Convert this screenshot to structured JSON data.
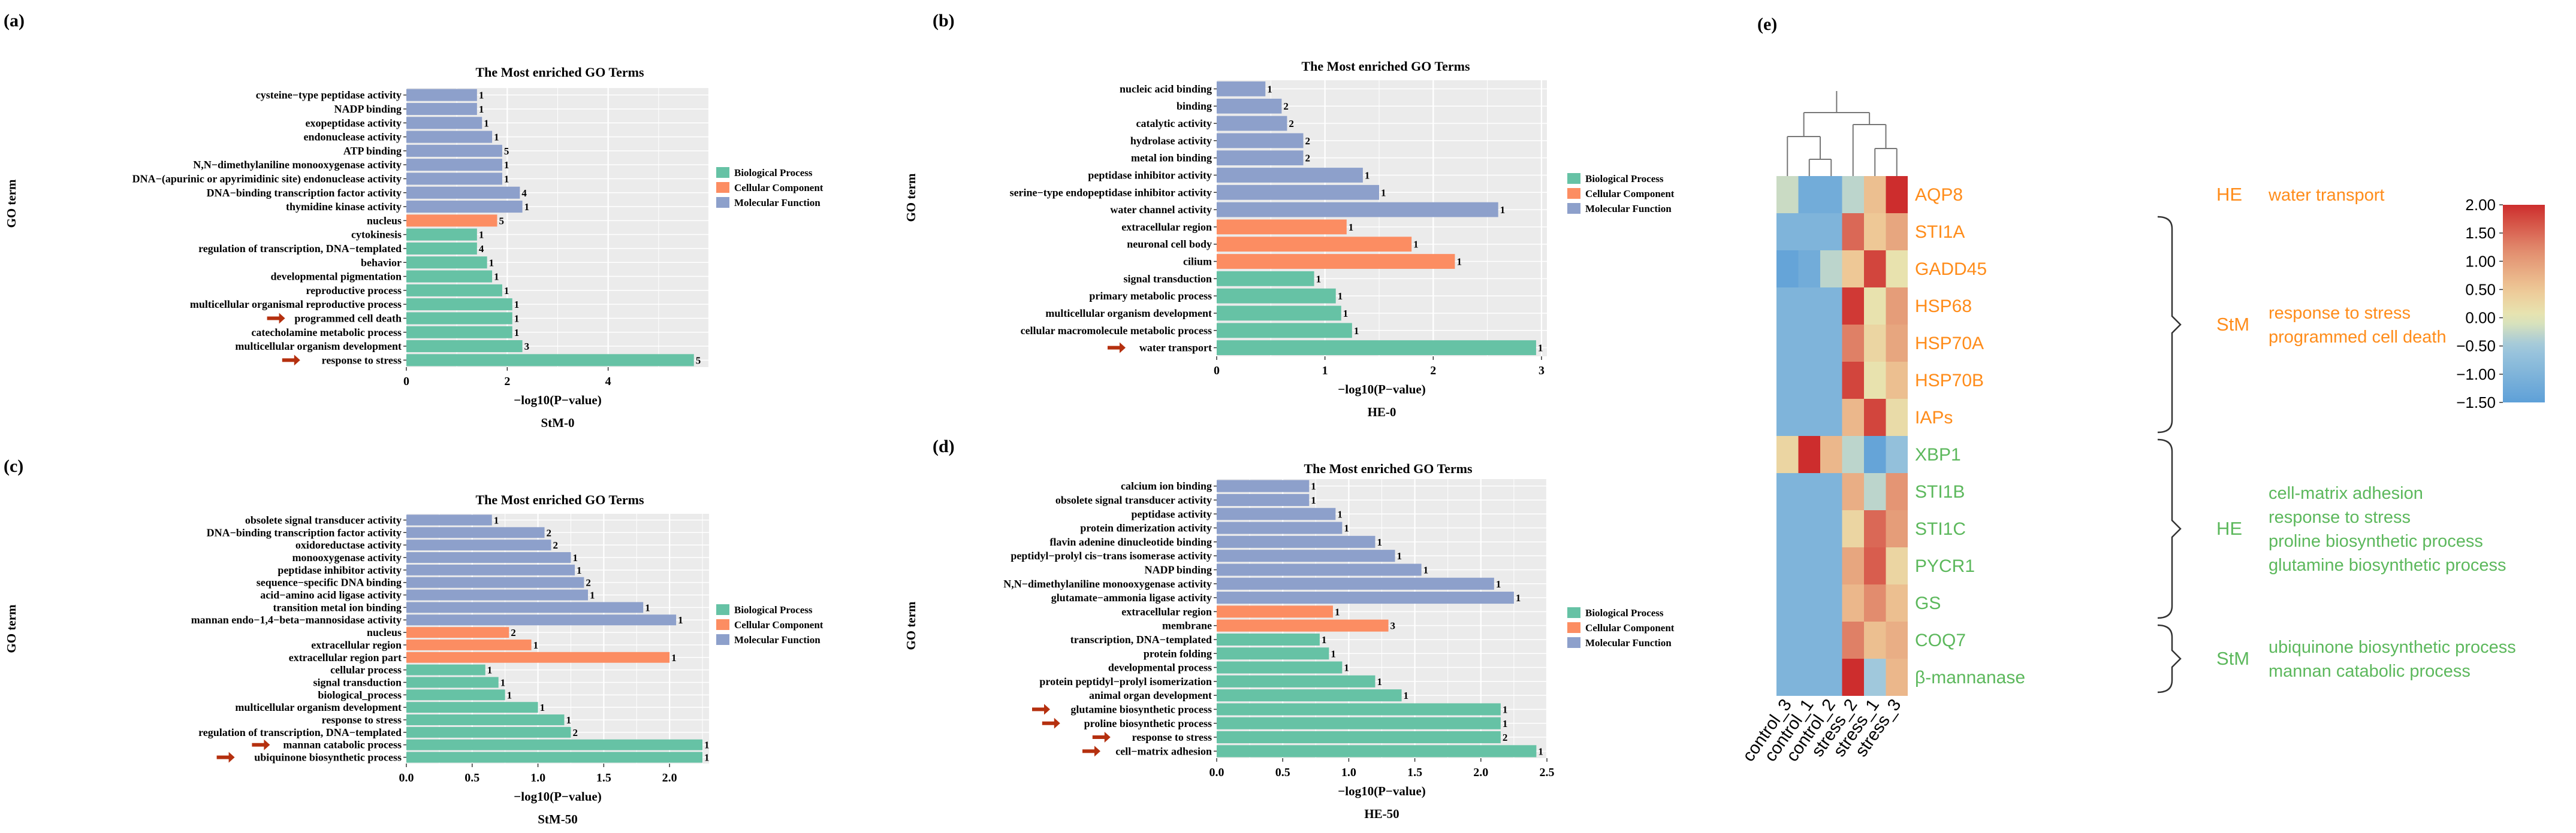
{
  "colors": {
    "bp": "#66c2a5",
    "cc": "#fc8d62",
    "mf": "#8da0cb",
    "panel_bg": "#ebebeb",
    "grid": "#ffffff",
    "arrow": "#b5300f",
    "he_text": "#ff8c1a",
    "stm_green": "#5cb85c",
    "bracket": "#333333",
    "dendro": "#777777"
  },
  "legend": {
    "items": [
      {
        "label": "Biological Process",
        "color_key": "bp"
      },
      {
        "label": "Cellular Component",
        "color_key": "cc"
      },
      {
        "label": "Molecular Function",
        "color_key": "mf"
      }
    ]
  },
  "chart_data": [
    {
      "panel": "(a)",
      "type": "bar",
      "orientation": "horizontal",
      "title": "The Most enriched GO Terms",
      "xlabel": "−log10(P−value)",
      "ylabel": "GO term",
      "subtitle": "StM-0",
      "xlim": [
        0,
        6
      ],
      "xticks": [
        0,
        2,
        4
      ],
      "bars": [
        {
          "term": "cysteine−type peptidase activity",
          "value": 1.4,
          "count": "1",
          "category": "mf",
          "arrow": false
        },
        {
          "term": "NADP binding",
          "value": 1.4,
          "count": "1",
          "category": "mf",
          "arrow": false
        },
        {
          "term": "exopeptidase activity",
          "value": 1.5,
          "count": "1",
          "category": "mf",
          "arrow": false
        },
        {
          "term": "endonuclease activity",
          "value": 1.7,
          "count": "1",
          "category": "mf",
          "arrow": false
        },
        {
          "term": "ATP binding",
          "value": 1.9,
          "count": "5",
          "category": "mf",
          "arrow": false
        },
        {
          "term": "N,N−dimethylaniline monooxygenase activity",
          "value": 1.9,
          "count": "1",
          "category": "mf",
          "arrow": false
        },
        {
          "term": "DNA−(apurinic or apyrimidinic site) endonuclease activity",
          "value": 1.9,
          "count": "1",
          "category": "mf",
          "arrow": false
        },
        {
          "term": "DNA−binding transcription factor activity",
          "value": 2.25,
          "count": "4",
          "category": "mf",
          "arrow": false
        },
        {
          "term": "thymidine kinase activity",
          "value": 2.3,
          "count": "1",
          "category": "mf",
          "arrow": false
        },
        {
          "term": "nucleus",
          "value": 1.8,
          "count": "5",
          "category": "cc",
          "arrow": false
        },
        {
          "term": "cytokinesis",
          "value": 1.4,
          "count": "1",
          "category": "bp",
          "arrow": false
        },
        {
          "term": "regulation of transcription, DNA−templated",
          "value": 1.4,
          "count": "4",
          "category": "bp",
          "arrow": false
        },
        {
          "term": "behavior",
          "value": 1.6,
          "count": "1",
          "category": "bp",
          "arrow": false
        },
        {
          "term": "developmental pigmentation",
          "value": 1.7,
          "count": "1",
          "category": "bp",
          "arrow": false
        },
        {
          "term": "reproductive process",
          "value": 1.9,
          "count": "1",
          "category": "bp",
          "arrow": false
        },
        {
          "term": "multicellular organismal reproductive process",
          "value": 2.1,
          "count": "1",
          "category": "bp",
          "arrow": false
        },
        {
          "term": "programmed cell death",
          "value": 2.1,
          "count": "1",
          "category": "bp",
          "arrow": true
        },
        {
          "term": "catecholamine metabolic process",
          "value": 2.1,
          "count": "1",
          "category": "bp",
          "arrow": false
        },
        {
          "term": "multicellular organism development",
          "value": 2.3,
          "count": "3",
          "category": "bp",
          "arrow": false
        },
        {
          "term": "response to stress",
          "value": 5.7,
          "count": "5",
          "category": "bp",
          "arrow": true
        }
      ]
    },
    {
      "panel": "(b)",
      "type": "bar",
      "orientation": "horizontal",
      "title": "The Most enriched GO Terms",
      "xlabel": "−log10(P−value)",
      "ylabel": "GO term",
      "subtitle": "HE-0",
      "xlim": [
        0,
        3.05
      ],
      "xticks": [
        0,
        1,
        2,
        3
      ],
      "bars": [
        {
          "term": "nucleic acid binding",
          "value": 0.45,
          "count": "1",
          "category": "mf",
          "arrow": false
        },
        {
          "term": "binding",
          "value": 0.6,
          "count": "2",
          "category": "mf",
          "arrow": false
        },
        {
          "term": "catalytic activity",
          "value": 0.65,
          "count": "2",
          "category": "mf",
          "arrow": false
        },
        {
          "term": "hydrolase activity",
          "value": 0.8,
          "count": "2",
          "category": "mf",
          "arrow": false
        },
        {
          "term": "metal ion binding",
          "value": 0.8,
          "count": "2",
          "category": "mf",
          "arrow": false
        },
        {
          "term": "peptidase inhibitor activity",
          "value": 1.35,
          "count": "1",
          "category": "mf",
          "arrow": false
        },
        {
          "term": "serine−type endopeptidase inhibitor activity",
          "value": 1.5,
          "count": "1",
          "category": "mf",
          "arrow": false
        },
        {
          "term": "water channel activity",
          "value": 2.6,
          "count": "1",
          "category": "mf",
          "arrow": false
        },
        {
          "term": "extracellular region",
          "value": 1.2,
          "count": "1",
          "category": "cc",
          "arrow": false
        },
        {
          "term": "neuronal cell body",
          "value": 1.8,
          "count": "1",
          "category": "cc",
          "arrow": false
        },
        {
          "term": "cilium",
          "value": 2.2,
          "count": "1",
          "category": "cc",
          "arrow": false
        },
        {
          "term": "signal transduction",
          "value": 0.9,
          "count": "1",
          "category": "bp",
          "arrow": false
        },
        {
          "term": "primary metabolic process",
          "value": 1.1,
          "count": "1",
          "category": "bp",
          "arrow": false
        },
        {
          "term": "multicellular organism development",
          "value": 1.15,
          "count": "1",
          "category": "bp",
          "arrow": false
        },
        {
          "term": "cellular macromolecule metabolic process",
          "value": 1.25,
          "count": "1",
          "category": "bp",
          "arrow": false
        },
        {
          "term": "water transport",
          "value": 2.95,
          "count": "1",
          "category": "bp",
          "arrow": true
        }
      ]
    },
    {
      "panel": "(c)",
      "type": "bar",
      "orientation": "horizontal",
      "title": "The Most enriched GO Terms",
      "xlabel": "−log10(P−value)",
      "ylabel": "GO term",
      "subtitle": "StM-50",
      "xlim": [
        0,
        2.3
      ],
      "xticks": [
        0.0,
        0.5,
        1.0,
        1.5,
        2.0
      ],
      "tick_labels": [
        "0.0",
        "0.5",
        "1.0",
        "1.5",
        "2.0"
      ],
      "bars": [
        {
          "term": "obsolete signal transducer activity",
          "value": 0.65,
          "count": "1",
          "category": "mf",
          "arrow": false
        },
        {
          "term": "DNA−binding transcription factor activity",
          "value": 1.05,
          "count": "2",
          "category": "mf",
          "arrow": false
        },
        {
          "term": "oxidoreductase activity",
          "value": 1.1,
          "count": "2",
          "category": "mf",
          "arrow": false
        },
        {
          "term": "monooxygenase activity",
          "value": 1.25,
          "count": "1",
          "category": "mf",
          "arrow": false
        },
        {
          "term": "peptidase inhibitor activity",
          "value": 1.28,
          "count": "1",
          "category": "mf",
          "arrow": false
        },
        {
          "term": "sequence−specific DNA binding",
          "value": 1.35,
          "count": "2",
          "category": "mf",
          "arrow": false
        },
        {
          "term": "acid−amino acid ligase activity",
          "value": 1.38,
          "count": "1",
          "category": "mf",
          "arrow": false
        },
        {
          "term": "transition metal ion binding",
          "value": 1.8,
          "count": "1",
          "category": "mf",
          "arrow": false
        },
        {
          "term": "mannan endo−1,4−beta−mannosidase activity",
          "value": 2.05,
          "count": "1",
          "category": "mf",
          "arrow": false
        },
        {
          "term": "nucleus",
          "value": 0.78,
          "count": "2",
          "category": "cc",
          "arrow": false
        },
        {
          "term": "extracellular region",
          "value": 0.95,
          "count": "1",
          "category": "cc",
          "arrow": false
        },
        {
          "term": "extracellular region part",
          "value": 2.0,
          "count": "1",
          "category": "cc",
          "arrow": false
        },
        {
          "term": "cellular process",
          "value": 0.6,
          "count": "1",
          "category": "bp",
          "arrow": false
        },
        {
          "term": "signal transduction",
          "value": 0.7,
          "count": "1",
          "category": "bp",
          "arrow": false
        },
        {
          "term": "biological_process",
          "value": 0.75,
          "count": "1",
          "category": "bp",
          "arrow": false
        },
        {
          "term": "multicellular organism development",
          "value": 1.0,
          "count": "1",
          "category": "bp",
          "arrow": false
        },
        {
          "term": "response to stress",
          "value": 1.2,
          "count": "1",
          "category": "bp",
          "arrow": false
        },
        {
          "term": "regulation of transcription, DNA−templated",
          "value": 1.25,
          "count": "2",
          "category": "bp",
          "arrow": false
        },
        {
          "term": "mannan catabolic process",
          "value": 2.25,
          "count": "1",
          "category": "bp",
          "arrow": true
        },
        {
          "term": "ubiquinone biosynthetic process",
          "value": 2.25,
          "count": "1",
          "category": "bp",
          "arrow": true
        }
      ]
    },
    {
      "panel": "(d)",
      "type": "bar",
      "orientation": "horizontal",
      "title": "The Most enriched GO Terms",
      "xlabel": "−log10(P−value)",
      "ylabel": "GO term",
      "subtitle": "HE-50",
      "xlim": [
        0,
        2.5
      ],
      "xticks": [
        0.0,
        0.5,
        1.0,
        1.5,
        2.0,
        2.5
      ],
      "tick_labels": [
        "0.0",
        "0.5",
        "1.0",
        "1.5",
        "2.0",
        "2.5"
      ],
      "bars": [
        {
          "term": "calcium ion binding",
          "value": 0.7,
          "count": "1",
          "category": "mf",
          "arrow": false
        },
        {
          "term": "obsolete signal transducer activity",
          "value": 0.7,
          "count": "1",
          "category": "mf",
          "arrow": false
        },
        {
          "term": "peptidase activity",
          "value": 0.9,
          "count": "1",
          "category": "mf",
          "arrow": false
        },
        {
          "term": "protein dimerization activity",
          "value": 0.95,
          "count": "1",
          "category": "mf",
          "arrow": false
        },
        {
          "term": "flavin adenine dinucleotide binding",
          "value": 1.2,
          "count": "1",
          "category": "mf",
          "arrow": false
        },
        {
          "term": "peptidyl−prolyl cis−trans isomerase activity",
          "value": 1.35,
          "count": "1",
          "category": "mf",
          "arrow": false
        },
        {
          "term": "NADP binding",
          "value": 1.55,
          "count": "1",
          "category": "mf",
          "arrow": false
        },
        {
          "term": "N,N−dimethylaniline monooxygenase activity",
          "value": 2.1,
          "count": "1",
          "category": "mf",
          "arrow": false
        },
        {
          "term": "glutamate−ammonia ligase activity",
          "value": 2.25,
          "count": "1",
          "category": "mf",
          "arrow": false
        },
        {
          "term": "extracellular region",
          "value": 0.88,
          "count": "1",
          "category": "cc",
          "arrow": false
        },
        {
          "term": "membrane",
          "value": 1.3,
          "count": "3",
          "category": "cc",
          "arrow": false
        },
        {
          "term": "transcription, DNA−templated",
          "value": 0.78,
          "count": "1",
          "category": "bp",
          "arrow": false
        },
        {
          "term": "protein folding",
          "value": 0.85,
          "count": "1",
          "category": "bp",
          "arrow": false
        },
        {
          "term": "developmental process",
          "value": 0.95,
          "count": "1",
          "category": "bp",
          "arrow": false
        },
        {
          "term": "protein peptidyl−prolyl isomerization",
          "value": 1.2,
          "count": "1",
          "category": "bp",
          "arrow": false
        },
        {
          "term": "animal organ development",
          "value": 1.4,
          "count": "1",
          "category": "bp",
          "arrow": false
        },
        {
          "term": "glutamine biosynthetic process",
          "value": 2.15,
          "count": "1",
          "category": "bp",
          "arrow": true
        },
        {
          "term": "proline biosynthetic process",
          "value": 2.15,
          "count": "1",
          "category": "bp",
          "arrow": true
        },
        {
          "term": "response to stress",
          "value": 2.15,
          "count": "2",
          "category": "bp",
          "arrow": true
        },
        {
          "term": "cell−matrix adhesion",
          "value": 2.42,
          "count": "1",
          "category": "bp",
          "arrow": true
        }
      ]
    },
    {
      "panel": "(e)",
      "type": "heatmap",
      "columns": [
        "control_3",
        "control_1",
        "control_2",
        "stress_2",
        "stress_1",
        "stress_3"
      ],
      "rows": [
        "AQP8",
        "STI1A",
        "GADD45",
        "HSP68",
        "HSP70A",
        "HSP70B",
        "IAPs",
        "XBP1",
        "STI1B",
        "STI1C",
        "PYCR1",
        "GS",
        "COQ7",
        "β-mannanase"
      ],
      "row_colors": [
        "he",
        "he",
        "he",
        "he",
        "he",
        "he",
        "he",
        "stm",
        "stm",
        "stm",
        "stm",
        "stm",
        "stm",
        "stm"
      ],
      "values": [
        [
          -0.2,
          -1.2,
          -1.2,
          -0.3,
          0.6,
          2.0
        ],
        [
          -1.0,
          -1.0,
          -1.0,
          1.5,
          0.5,
          0.9
        ],
        [
          -1.4,
          -1.2,
          -0.3,
          0.5,
          1.8,
          0.1
        ],
        [
          -1.0,
          -1.0,
          -1.0,
          1.9,
          0.1,
          1.0
        ],
        [
          -1.0,
          -1.0,
          -1.0,
          1.3,
          0.3,
          0.9
        ],
        [
          -1.0,
          -1.0,
          -1.0,
          1.8,
          0.1,
          0.6
        ],
        [
          -1.0,
          -1.0,
          -1.0,
          0.7,
          1.8,
          0.2
        ],
        [
          0.3,
          2.0,
          0.7,
          -0.3,
          -1.4,
          -0.7
        ],
        [
          -1.0,
          -1.0,
          -1.0,
          0.8,
          -0.3,
          1.1
        ],
        [
          -1.0,
          -1.0,
          -1.0,
          0.3,
          1.5,
          1.0
        ],
        [
          -1.0,
          -1.0,
          -1.0,
          0.9,
          1.6,
          0.3
        ],
        [
          -1.0,
          -1.0,
          -1.0,
          0.7,
          1.2,
          0.6
        ],
        [
          -1.0,
          -1.0,
          -1.0,
          1.3,
          0.6,
          0.8
        ],
        [
          -1.0,
          -1.0,
          -1.0,
          2.0,
          -0.5,
          0.7
        ]
      ],
      "color_range": [
        -1.5,
        2.0
      ],
      "colorbar_ticks": [
        "2.00",
        "1.50",
        "1.00",
        "0.50",
        "0.00",
        "−0.50",
        "−1.00",
        "−1.50"
      ],
      "colorbar_values": [
        2.0,
        1.5,
        1.0,
        0.5,
        0.0,
        -0.5,
        -1.0,
        -1.5
      ],
      "annotations": [
        {
          "group": "HE",
          "lines": [
            "water transport"
          ],
          "rows": [
            0,
            0
          ],
          "color_key": "he_text",
          "bracket": false
        },
        {
          "group": "StM",
          "lines": [
            "response to stress",
            "programmed cell death"
          ],
          "rows": [
            1,
            6
          ],
          "color_key": "he_text",
          "bracket": true
        },
        {
          "group": "HE",
          "lines": [
            "cell-matrix adhesion",
            "response to stress",
            "proline biosynthetic process",
            "glutamine biosynthetic process"
          ],
          "rows": [
            7,
            11
          ],
          "color_key": "stm_green",
          "bracket": true
        },
        {
          "group": "StM",
          "lines": [
            "ubiquinone biosynthetic process",
            "mannan catabolic process"
          ],
          "rows": [
            12,
            13
          ],
          "color_key": "stm_green",
          "bracket": true
        }
      ]
    }
  ]
}
